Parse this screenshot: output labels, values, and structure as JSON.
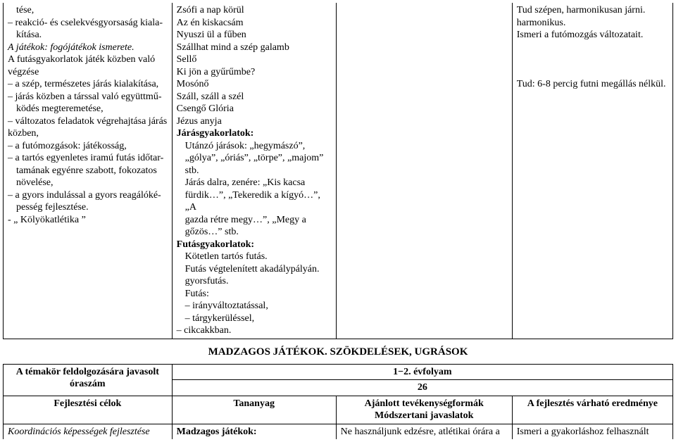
{
  "table1": {
    "col1": {
      "lines": [
        {
          "text": "tése,",
          "indent": 1
        },
        {
          "text": "– reakció- és cselekvésgyorsaság kiala-",
          "indent": 0
        },
        {
          "text": "kítása.",
          "indent": 1
        },
        {
          "text": "A játékok: fogójátékok ismerete.",
          "italic": true
        },
        {
          "text": "A futásgyakorlatok játék közben való végzése"
        },
        {
          "text": "– a szép, természetes járás kialakítása,"
        },
        {
          "text": "– járás közben a társsal való együttmű-",
          "indent": 0
        },
        {
          "text": "ködés megteremetése,",
          "indent": 1
        },
        {
          "text": "– változatos feladatok végrehajtása járás közben,"
        },
        {
          "text": "– a futómozgások: játékosság,"
        },
        {
          "text": "– a tartós egyenletes iramú futás időtar-",
          "indent": 0
        },
        {
          "text": "tamának egyénre szabott, fokozatos növelése,",
          "indent": 1
        },
        {
          "text": "– a gyors indulással a gyors reagálóké-",
          "indent": 0
        },
        {
          "text": "pesség fejlesztése.",
          "indent": 1
        },
        {
          "text": "- „ Kölyökatlétika ”"
        }
      ]
    },
    "col2": {
      "lines": [
        {
          "text": "Zsófi a nap körül"
        },
        {
          "text": "Az én kiskacsám"
        },
        {
          "text": "Nyuszi ül a fűben"
        },
        {
          "text": "Szállhat mind a szép galamb"
        },
        {
          "text": "Sellő"
        },
        {
          "text": "Ki jön a gyűrűmbe?"
        },
        {
          "text": "Mosónő"
        },
        {
          "text": "Száll, száll a szél"
        },
        {
          "text": "Csengő Glória"
        },
        {
          "text": "Jézus anyja"
        },
        {
          "text": "Járásgyakorlatok:",
          "bold": true
        },
        {
          "text": "Utánzó járások: „hegymászó”,",
          "indent": 1
        },
        {
          "text": "„gólya”, „óriás”, „törpe”, „majom”",
          "indent": 1
        },
        {
          "text": "stb.",
          "indent": 1
        },
        {
          "text": "Járás dalra, zenére: „Kis kacsa",
          "indent": 1
        },
        {
          "text": "fürdik…”, „Tekeredik a kígyó…”, „A",
          "indent": 1
        },
        {
          "text": "gazda rétre megy…”, „Megy a",
          "indent": 1
        },
        {
          "text": "gőzös…” stb.",
          "indent": 1
        },
        {
          "text": "Futásgyakorlatok:",
          "bold": true
        },
        {
          "text": "Kötetlen tartós futás.",
          "indent": 1
        },
        {
          "text": "Futás végtelenített akadálypályán.",
          "indent": 1
        },
        {
          "text": "gyorsfutás.",
          "indent": 1
        },
        {
          "text": "Futás:",
          "indent": 1
        },
        {
          "text": "– irányváltoztatással,",
          "indent": 1
        },
        {
          "text": "– tárgykerüléssel,",
          "indent": 1
        },
        {
          "text": "– cikcakkban."
        }
      ]
    },
    "col3": {
      "lines": []
    },
    "col4": {
      "lines": [
        {
          "text": "Tud szépen, harmonikusan járni."
        },
        {
          "text": "harmonikus."
        },
        {
          "text": "Ismeri a futómozgás változatait."
        },
        {
          "text": ""
        },
        {
          "text": ""
        },
        {
          "text": ""
        },
        {
          "text": "Tud: 6-8 percig futni megállás nélkül."
        }
      ]
    }
  },
  "sectionTitle": "MADZAGOS JÁTÉKOK. SZÖKDELÉSEK, UGRÁSOK",
  "table2": {
    "r1c1": "A témakör feldolgozására javasolt óraszám",
    "r1c2": "1−2. évfolyam",
    "r2c2": "26",
    "r3c1": "Fejlesztési célok",
    "r3c2": "Tananyag",
    "r3c3a": "Ajánlott tevékenységformák",
    "r3c3b": "Módszertani javaslatok",
    "r3c4": "A fejlesztés várható eredménye",
    "r4c1": "Koordinációs képességek fejlesztése",
    "r4c2": "Madzagos játékok:",
    "r4c3": "Ne használjunk edzésre, atlétikai órára a",
    "r4c4": "Ismeri a gyakorláshoz felhasznált"
  },
  "colWidths": [
    "25.2%",
    "24.5%",
    "26.3%",
    "24%"
  ]
}
